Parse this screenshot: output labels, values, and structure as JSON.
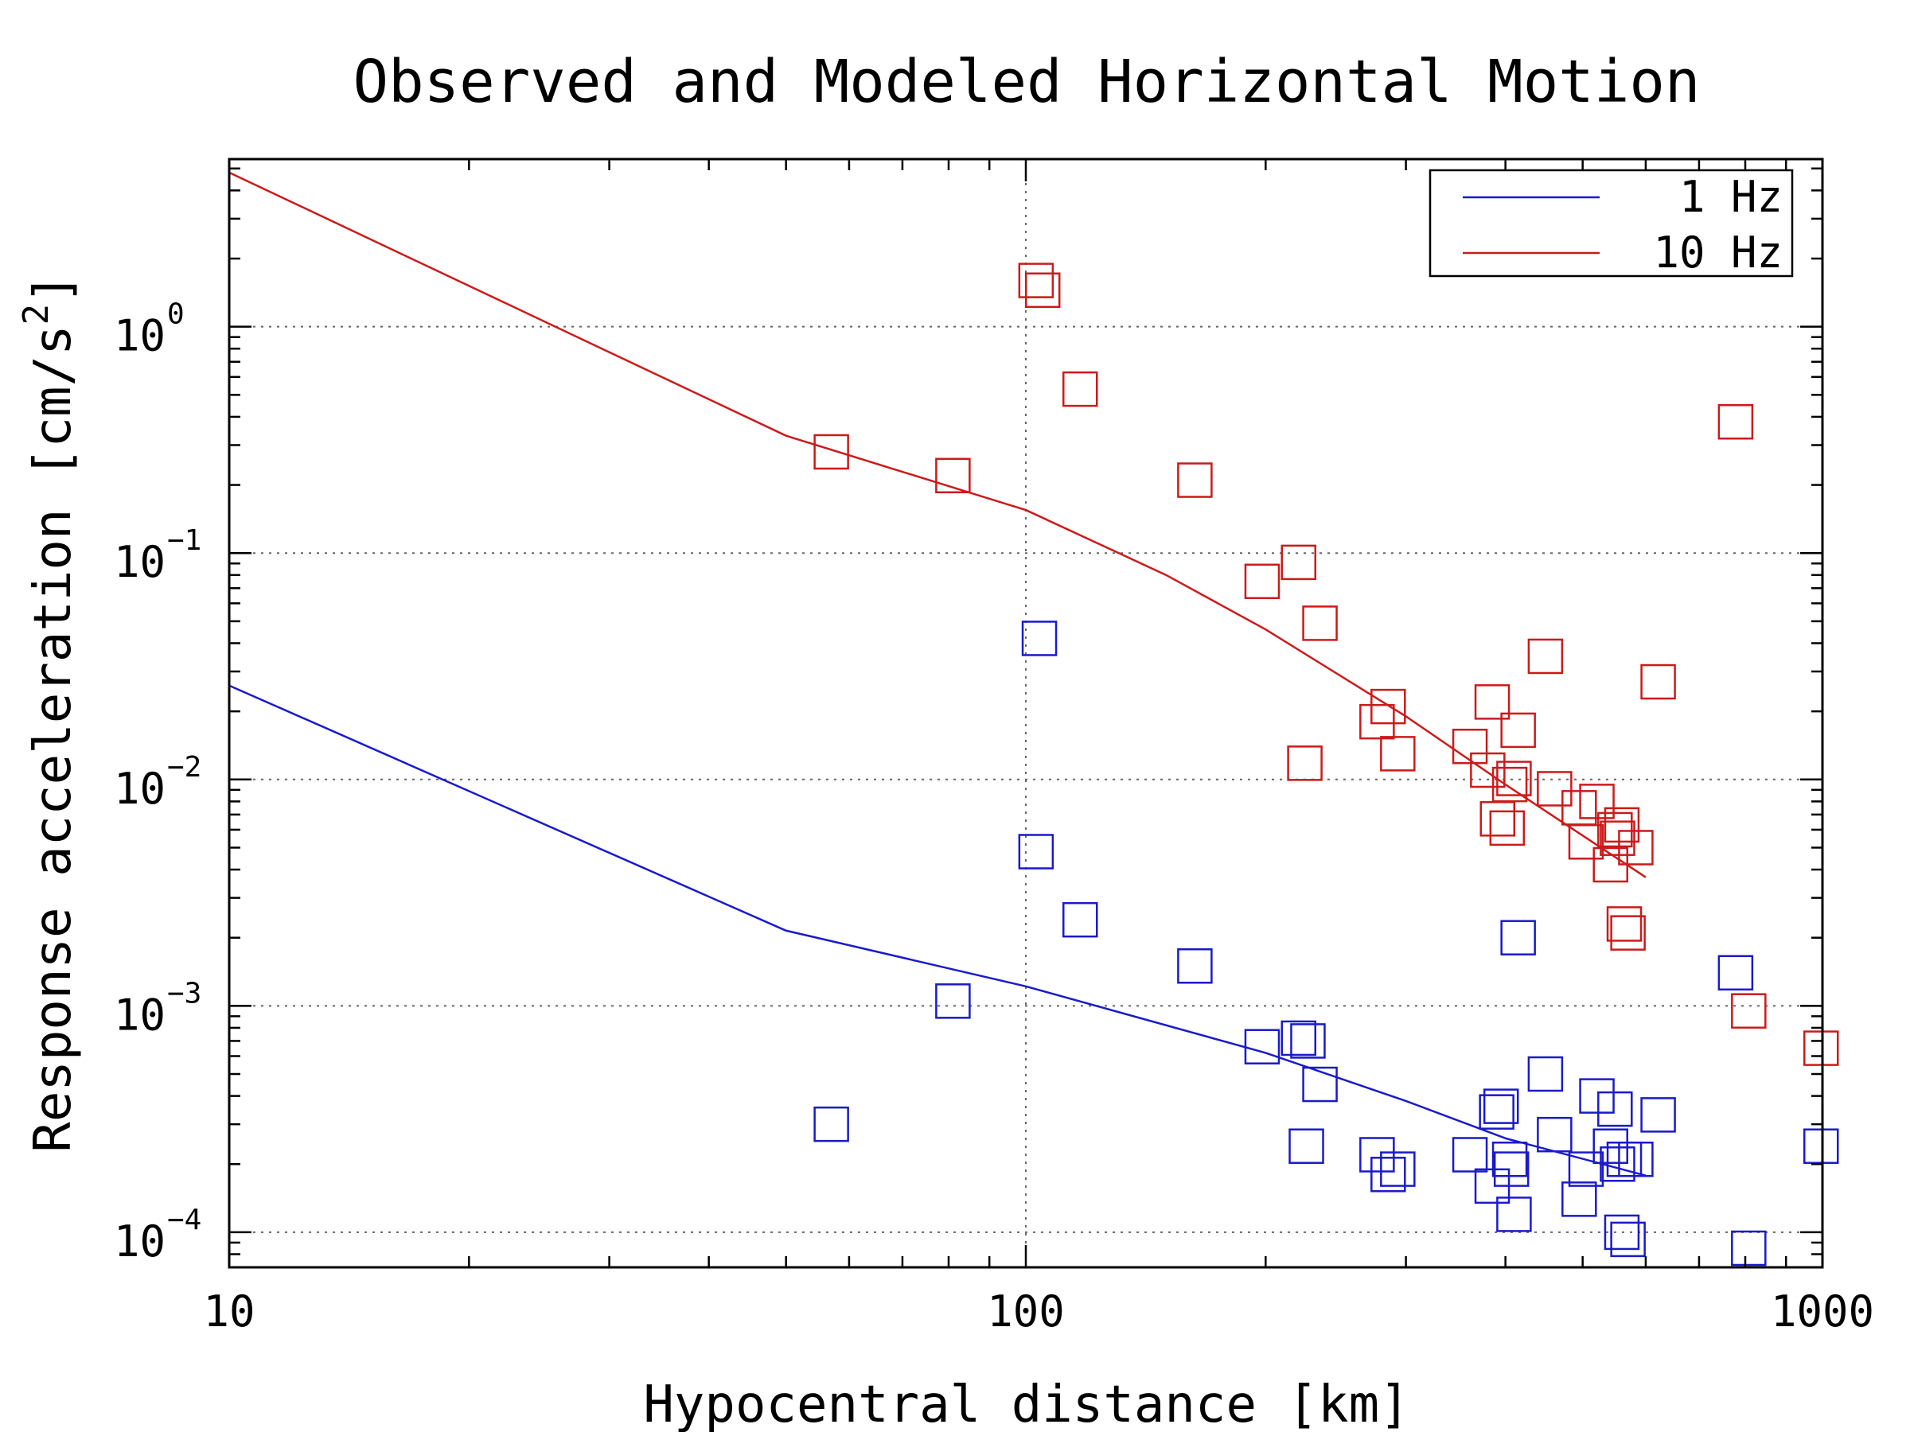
{
  "chart_data": {
    "type": "scatter",
    "title": "Observed and Modeled Horizontal Motion",
    "xlabel": "Hypocentral distance [km]",
    "ylabel": "Response acceleration [cm/s2]",
    "ylabel_base": "Response acceleration [cm/s",
    "ylabel_sup": "2",
    "ylabel_end": "]",
    "x_scale": "log",
    "y_scale": "log",
    "xlim": [
      10,
      1000
    ],
    "ylim": [
      7e-05,
      5.5
    ],
    "grid": true,
    "legend_position": "top-right",
    "x_ticks": [
      {
        "value": 10,
        "label": "10"
      },
      {
        "value": 100,
        "label": "100"
      },
      {
        "value": 1000,
        "label": "1000"
      }
    ],
    "y_ticks": [
      {
        "value": 1,
        "base": "10",
        "exp": "0"
      },
      {
        "value": 0.1,
        "base": "10",
        "exp": "−1"
      },
      {
        "value": 0.01,
        "base": "10",
        "exp": "−2"
      },
      {
        "value": 0.001,
        "base": "10",
        "exp": "−3"
      },
      {
        "value": 0.0001,
        "base": "10",
        "exp": "−4"
      }
    ],
    "series": [
      {
        "name": "1 Hz",
        "color": "#1a1acc",
        "model_line": {
          "x": [
            10,
            50,
            100,
            200,
            300,
            400,
            600
          ],
          "y": [
            0.026,
            0.00215,
            0.00122,
            0.00062,
            0.00038,
            0.00026,
            0.000178
          ]
        },
        "observed": {
          "x": [
            57,
            81,
            103,
            104,
            117,
            163,
            198,
            220,
            225,
            226,
            234,
            276,
            285,
            293,
            361,
            385,
            390,
            395,
            405,
            407,
            410,
            415,
            449,
            461,
            495,
            505,
            521,
            542,
            549,
            553,
            560,
            564,
            570,
            583,
            622,
            778,
            808,
            996
          ],
          "y": [
            0.0003,
            0.00105,
            0.0048,
            0.042,
            0.0024,
            0.0015,
            0.00066,
            0.00072,
            0.00024,
            0.0007,
            0.00045,
            0.00022,
            0.00018,
            0.00019,
            0.00022,
            0.00016,
            0.00034,
            0.00036,
            0.00021,
            0.00019,
            0.00012,
            0.002,
            0.0005,
            0.00027,
            0.00014,
            0.00019,
            0.0004,
            0.00024,
            0.00035,
            0.0002,
            0.0001,
            0.00021,
            9.3e-05,
            0.00021,
            0.00033,
            0.0014,
            8.5e-05,
            0.00024
          ]
        }
      },
      {
        "name": "10 Hz",
        "color": "#cc1a1a",
        "model_line": {
          "x": [
            10,
            50,
            100,
            150,
            200,
            300,
            400,
            600
          ],
          "y": [
            4.8,
            0.33,
            0.155,
            0.08,
            0.046,
            0.019,
            0.0095,
            0.0037
          ]
        },
        "observed": {
          "x": [
            57,
            81,
            103,
            105,
            117,
            163,
            198,
            220,
            224,
            234,
            276,
            285,
            293,
            361,
            380,
            385,
            391,
            402,
            405,
            410,
            415,
            449,
            461,
            495,
            505,
            521,
            542,
            549,
            553,
            560,
            564,
            570,
            583,
            622,
            778,
            808,
            996
          ],
          "y": [
            0.28,
            0.22,
            1.6,
            1.45,
            0.53,
            0.21,
            0.075,
            0.091,
            0.0118,
            0.049,
            0.018,
            0.021,
            0.013,
            0.014,
            0.011,
            0.022,
            0.0067,
            0.0061,
            0.0095,
            0.0101,
            0.0165,
            0.035,
            0.0091,
            0.0075,
            0.0053,
            0.008,
            0.0042,
            0.006,
            0.0055,
            0.0063,
            0.0023,
            0.0021,
            0.005,
            0.027,
            0.38,
            0.00095,
            0.00065
          ]
        }
      }
    ]
  }
}
